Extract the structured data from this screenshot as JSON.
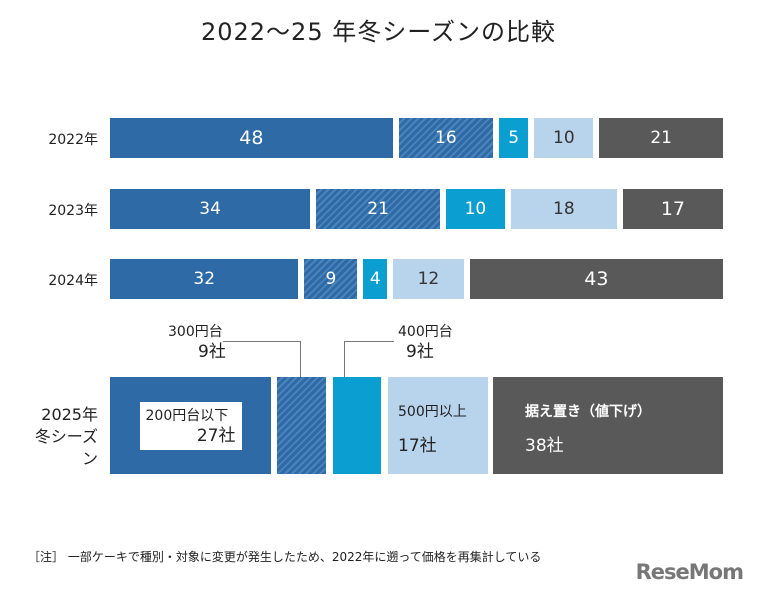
{
  "chart_data": {
    "type": "bar",
    "orientation": "horizontal",
    "stacked": true,
    "title": "2022～25 年冬シーズンの比較",
    "categories": [
      "2022年",
      "2023年",
      "2024年"
    ],
    "series": [
      {
        "values": [
          48,
          34,
          32
        ],
        "color": "#2e6aa5",
        "pattern": "solid"
      },
      {
        "values": [
          16,
          21,
          9
        ],
        "color": "#2e6aa5",
        "pattern": "hatched"
      },
      {
        "values": [
          5,
          10,
          4
        ],
        "color": "#0a9fd0",
        "pattern": "solid"
      },
      {
        "values": [
          10,
          18,
          12
        ],
        "color": "#b8d3ec",
        "pattern": "solid",
        "label_color": "#333"
      },
      {
        "values": [
          21,
          17,
          43
        ],
        "color": "#595959",
        "pattern": "solid"
      }
    ],
    "season_2025": {
      "label_line1": "2025年",
      "label_line2": "冬シーズン",
      "segments": [
        {
          "category": "200円台以下",
          "count": "27社",
          "value": 27
        },
        {
          "category": "300円台",
          "count": "9社",
          "value": 9
        },
        {
          "category": "400円台",
          "count": "9社",
          "value": 9
        },
        {
          "category": "500円以上",
          "count": "17社",
          "value": 17
        },
        {
          "category": "据え置き（値下げ）",
          "count": "38社",
          "value": 38
        }
      ]
    }
  },
  "note": "［注］ 一部ケーキで種別・対象に変更が発生したため、2022年に遡って価格を再集計している",
  "logo": "ReseMom"
}
